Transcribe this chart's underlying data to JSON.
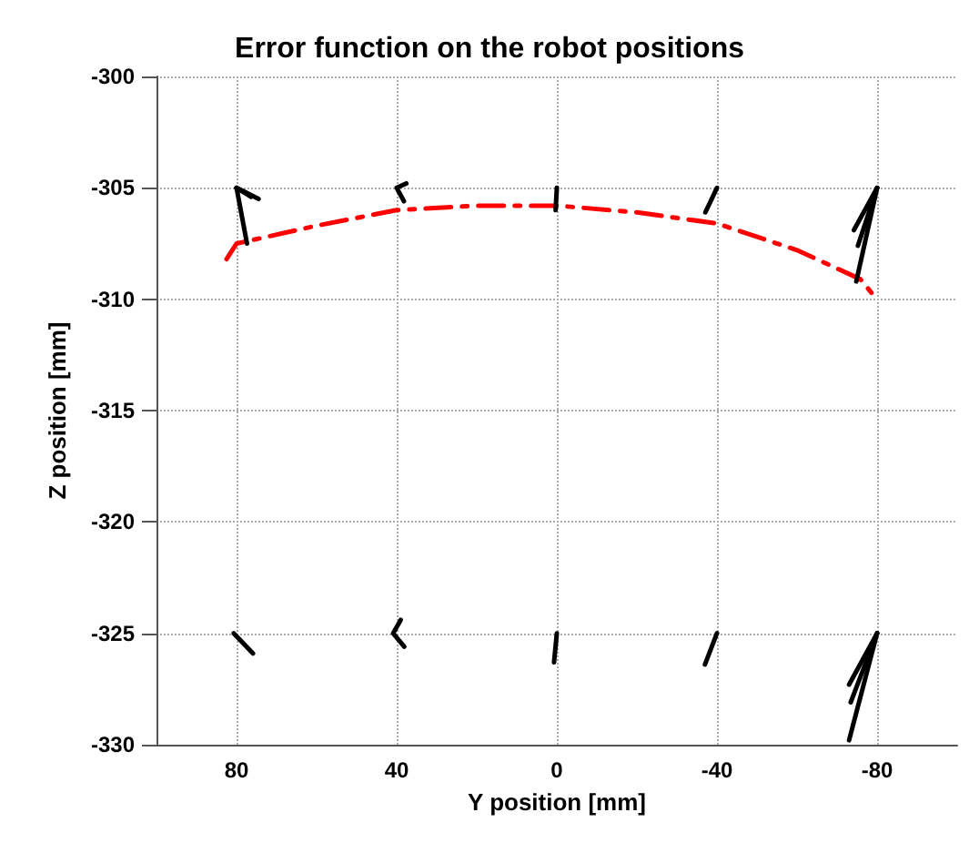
{
  "chart_data": {
    "type": "line",
    "title": "Error function on the robot positions",
    "xlabel": "Y position [mm]",
    "ylabel": "Z position [mm]",
    "xlim": [
      100,
      -100
    ],
    "xticks": [
      80,
      40,
      0,
      -40,
      -80
    ],
    "ylim": [
      -330,
      -300
    ],
    "yticks": [
      -330,
      -325,
      -320,
      -315,
      -310,
      -305,
      -300
    ],
    "grid": true,
    "marker": "none",
    "series": [
      {
        "color": "#ff0000",
        "line_style": "dashed",
        "x": [
          82.5,
          80,
          60,
          40,
          20,
          0,
          -20,
          -40,
          -60,
          -75.8,
          -79
        ],
        "values": [
          -308.2,
          -307.5,
          -306.7,
          -306,
          -305.8,
          -305.8,
          -306.1,
          -306.6,
          -307.8,
          -309.1,
          -309.8
        ]
      },
      {
        "color": "#000000",
        "line_style": "solid",
        "x": [
          80,
          77.4
        ],
        "values": [
          -305,
          -307.5
        ]
      },
      {
        "color": "#000000",
        "line_style": "solid",
        "x": [
          80,
          74.5
        ],
        "values": [
          -305,
          -305.5
        ]
      },
      {
        "color": "#000000",
        "line_style": "solid",
        "x": [
          80,
          76.4
        ],
        "values": [
          -305,
          -305.4
        ]
      },
      {
        "color": "#000000",
        "line_style": "solid",
        "x": [
          37.6,
          40,
          38.2
        ],
        "values": [
          -304.8,
          -305,
          -305.6
        ]
      },
      {
        "color": "#000000",
        "line_style": "solid",
        "x": [
          0,
          0.3
        ],
        "values": [
          -305,
          -306
        ]
      },
      {
        "color": "#000000",
        "line_style": "solid",
        "x": [
          -40,
          -37.1
        ],
        "values": [
          -305,
          -306.1
        ]
      },
      {
        "color": "#000000",
        "line_style": "solid",
        "x": [
          -80,
          -74.8
        ],
        "values": [
          -305,
          -309.2
        ]
      },
      {
        "color": "#000000",
        "line_style": "solid",
        "x": [
          -80,
          -74.2
        ],
        "values": [
          -305,
          -306.9
        ]
      },
      {
        "color": "#000000",
        "line_style": "solid",
        "x": [
          -80,
          -75.2
        ],
        "values": [
          -305,
          -307.6
        ]
      },
      {
        "color": "#000000",
        "line_style": "solid",
        "x": [
          80.7,
          75.9
        ],
        "values": [
          -325,
          -325.9
        ]
      },
      {
        "color": "#000000",
        "line_style": "solid",
        "x": [
          39,
          40.9,
          38.1
        ],
        "values": [
          -324.4,
          -325,
          -325.6
        ]
      },
      {
        "color": "#000000",
        "line_style": "solid",
        "x": [
          0,
          0.7
        ],
        "values": [
          -325,
          -326.3
        ]
      },
      {
        "color": "#000000",
        "line_style": "solid",
        "x": [
          -40,
          -37
        ],
        "values": [
          -325,
          -326.4
        ]
      },
      {
        "color": "#000000",
        "line_style": "solid",
        "x": [
          -80,
          -73
        ],
        "values": [
          -325,
          -329.8
        ]
      },
      {
        "color": "#000000",
        "line_style": "solid",
        "x": [
          -80,
          -73
        ],
        "values": [
          -325,
          -327.3
        ]
      },
      {
        "color": "#000000",
        "line_style": "solid",
        "x": [
          -80,
          -73.4
        ],
        "values": [
          -325,
          -328.1
        ]
      }
    ]
  }
}
